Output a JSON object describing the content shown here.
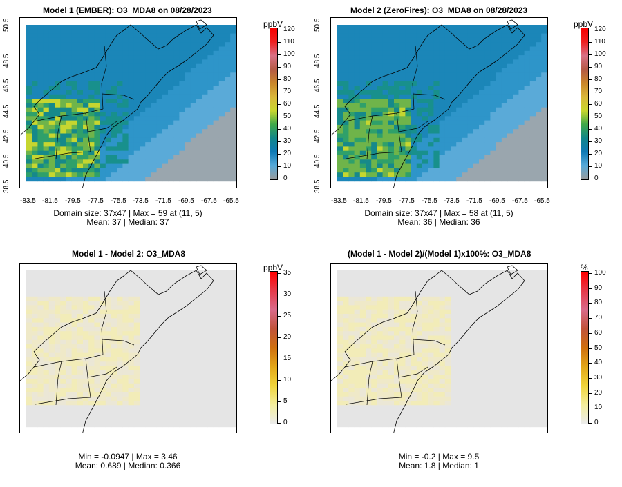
{
  "panels": [
    {
      "title": "Model 1 (EMBER): O3_MDA8 on 08/28/2023",
      "unit": "ppbV",
      "cbar_labels": [
        "120",
        "110",
        "100",
        "90",
        "80",
        "70",
        "60",
        "50",
        "40",
        "30",
        "20",
        "10",
        "0"
      ],
      "stats_line1": "Domain size: 37x47 | Max = 59 at (11, 5)",
      "stats_line2": "Mean: 37 |  Median: 37",
      "x_ticks": [
        "-83.5",
        "-81.5",
        "-79.5",
        "-77.5",
        "-75.5",
        "-73.5",
        "-71.5",
        "-69.5",
        "-67.5",
        "-65.5"
      ],
      "y_ticks": [
        "38.5",
        "40.5",
        "42.5",
        "44.5",
        "46.5",
        "48.5",
        "50.5"
      ]
    },
    {
      "title": "Model 2 (ZeroFires): O3_MDA8 on 08/28/2023",
      "unit": "ppbV",
      "cbar_labels": [
        "120",
        "110",
        "100",
        "90",
        "80",
        "70",
        "60",
        "50",
        "40",
        "30",
        "20",
        "10",
        "0"
      ],
      "stats_line1": "Domain size: 37x47 | Max = 58 at (11, 5)",
      "stats_line2": "Mean: 36 |  Median: 36",
      "x_ticks": [
        "-83.5",
        "-81.5",
        "-79.5",
        "-77.5",
        "-75.5",
        "-73.5",
        "-71.5",
        "-69.5",
        "-67.5",
        "-65.5"
      ],
      "y_ticks": [
        "38.5",
        "40.5",
        "42.5",
        "44.5",
        "46.5",
        "48.5",
        "50.5"
      ]
    },
    {
      "title": "Model 1 - Model 2: O3_MDA8",
      "unit": "ppbV",
      "cbar_labels": [
        "35",
        "30",
        "25",
        "20",
        "15",
        "10",
        "5",
        "0"
      ],
      "stats_line1": "Min = -0.0947 | Max = 3.46",
      "stats_line2": "Mean: 0.689 |  Median: 0.366"
    },
    {
      "title": "(Model 1 - Model 2)/(Model 1)x100%: O3_MDA8",
      "unit": "%",
      "cbar_labels": [
        "100",
        "90",
        "80",
        "70",
        "60",
        "50",
        "40",
        "30",
        "20",
        "10",
        "0"
      ],
      "stats_line1": "Min = -0.2 | Max = 9.5",
      "stats_line2": "Mean: 1.8 |  Median: 1"
    }
  ],
  "colors": {
    "ozone_scale": [
      "#9a9a9a",
      "#56a9d8",
      "#0f7ab6",
      "#12868a",
      "#3fa84a",
      "#c9d62e",
      "#d9b73a",
      "#c9862a",
      "#b45a45",
      "#d97085",
      "#ef2020",
      "#f70000"
    ],
    "diff_scale": [
      "#ececec",
      "#f4ee9c",
      "#f0d43a",
      "#e2a618",
      "#cf6f0e",
      "#c0533a",
      "#d96a8a",
      "#e53a4a",
      "#ff0000"
    ],
    "map_background": "#e5e5e5"
  }
}
